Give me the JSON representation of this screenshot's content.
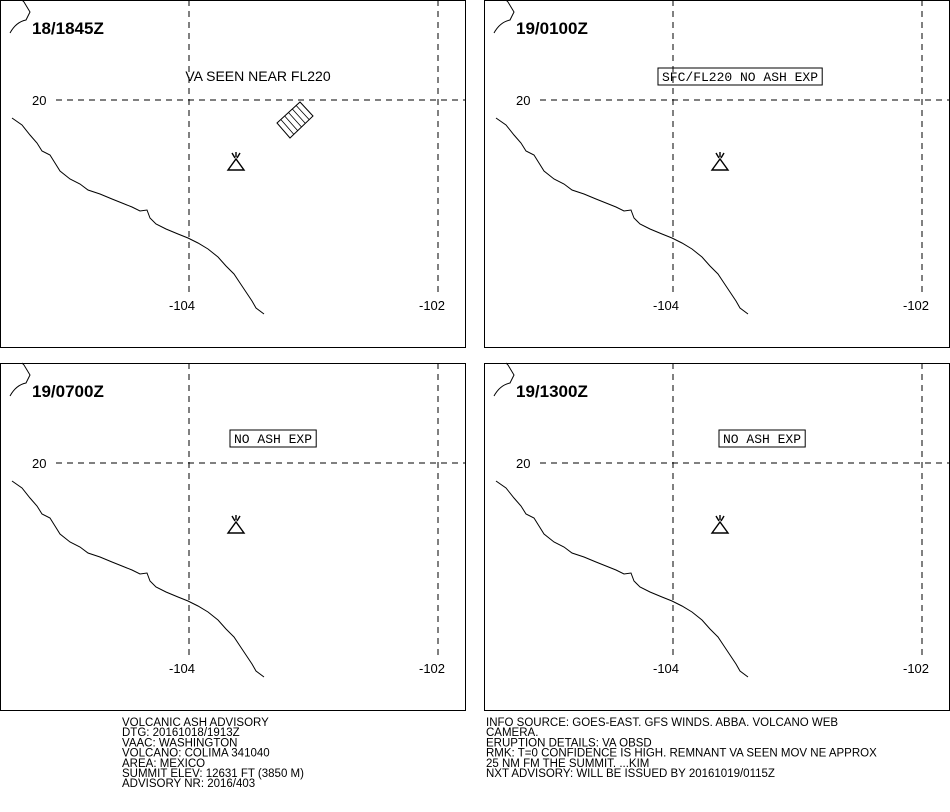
{
  "panels": [
    {
      "time": "18/1845Z",
      "annotation": "VA SEEN NEAR FL220",
      "lat_label": "20",
      "lon_labels": [
        "-104",
        "-102"
      ]
    },
    {
      "time": "19/0100Z",
      "annotation": "SFC/FL220 NO ASH EXP",
      "lat_label": "20",
      "lon_labels": [
        "-104",
        "-102"
      ]
    },
    {
      "time": "19/0700Z",
      "annotation": "NO ASH EXP",
      "lat_label": "20",
      "lon_labels": [
        "-104",
        "-102"
      ]
    },
    {
      "time": "19/1300Z",
      "annotation": "NO ASH EXP",
      "lat_label": "20",
      "lon_labels": [
        "-104",
        "-102"
      ]
    }
  ],
  "footer": {
    "left": [
      "VOLCANIC ASH ADVISORY",
      "DTG: 20161018/1913Z",
      "VAAC: WASHINGTON",
      "VOLCANO: COLIMA 341040",
      "AREA: MEXICO",
      "SUMMIT ELEV: 12631 FT (3850 M)",
      "ADVISORY NR: 2016/403"
    ],
    "right": [
      "INFO SOURCE: GOES-EAST. GFS WINDS. ABBA. VOLCANO WEB",
      "CAMERA.",
      "ERUPTION DETAILS: VA OBSD",
      "RMK: T=0 CONFIDENCE IS HIGH. REMNANT VA SEEN MOV NE APPROX",
      "25 NM FM THE SUMMIT. ...KIM",
      "NXT ADVISORY: WILL BE ISSUED BY 20161019/0115Z"
    ]
  }
}
